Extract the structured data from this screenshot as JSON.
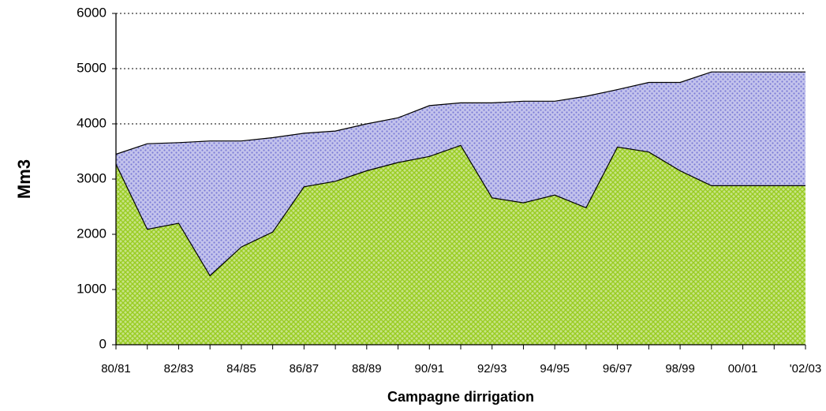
{
  "chart_data": {
    "type": "area",
    "x_label": "Campagne dirrigation",
    "y_label": "Mm3",
    "categories": [
      "80/81",
      null,
      "82/83",
      null,
      "84/85",
      null,
      "86/87",
      null,
      "88/89",
      null,
      "90/91",
      null,
      "92/93",
      null,
      "94/95",
      null,
      "96/97",
      null,
      "98/99",
      null,
      "00/01",
      null,
      "'02/03"
    ],
    "series": [
      {
        "color": "#7b7bd6",
        "values": [
          3450,
          3640,
          3660,
          3690,
          3690,
          3750,
          3830,
          3870,
          4000,
          4110,
          4330,
          4380,
          4380,
          4410,
          4410,
          4500,
          4620,
          4750,
          4750,
          4940,
          4940,
          4940,
          4940
        ]
      },
      {
        "color": "#99cc22",
        "values": [
          3270,
          2090,
          2200,
          1250,
          1770,
          2040,
          2860,
          2960,
          3150,
          3300,
          3410,
          3610,
          2660,
          2570,
          2710,
          2480,
          3580,
          3490,
          3150,
          2880,
          2880,
          2880,
          2880
        ]
      }
    ],
    "ylim": [
      0,
      6000
    ],
    "yticks": [
      0,
      1000,
      2000,
      3000,
      4000,
      5000,
      6000
    ],
    "grid": true
  }
}
